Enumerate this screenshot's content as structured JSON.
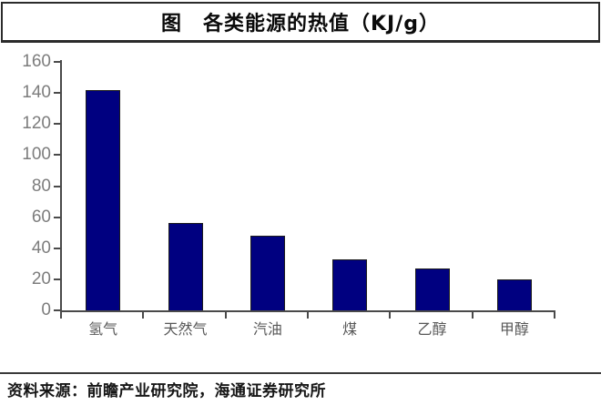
{
  "header": {
    "title": "图　各类能源的热值（KJ/g）"
  },
  "footer": {
    "source": "资料来源：前瞻产业研究院，海通证券研究所"
  },
  "chart_data": {
    "type": "bar",
    "title": "图　各类能源的热值（KJ/g）",
    "unit": "KJ/g",
    "categories": [
      "氢气",
      "天然气",
      "汽油",
      "煤",
      "乙醇",
      "甲醇"
    ],
    "values": [
      142,
      56,
      48,
      33,
      27,
      20
    ],
    "ylim": [
      0,
      160
    ],
    "yticks": [
      0,
      20,
      40,
      60,
      80,
      100,
      120,
      140,
      160
    ],
    "grid": false,
    "legend": "none"
  },
  "colors": {
    "bar": "#000080",
    "bar_border": "#1c1c1c",
    "axis": "#4a4a4a",
    "ytick_label": "#7d7d7d",
    "category_label": "#575757",
    "frame": "#2b2b2b",
    "divider": "#3a3a3a"
  }
}
